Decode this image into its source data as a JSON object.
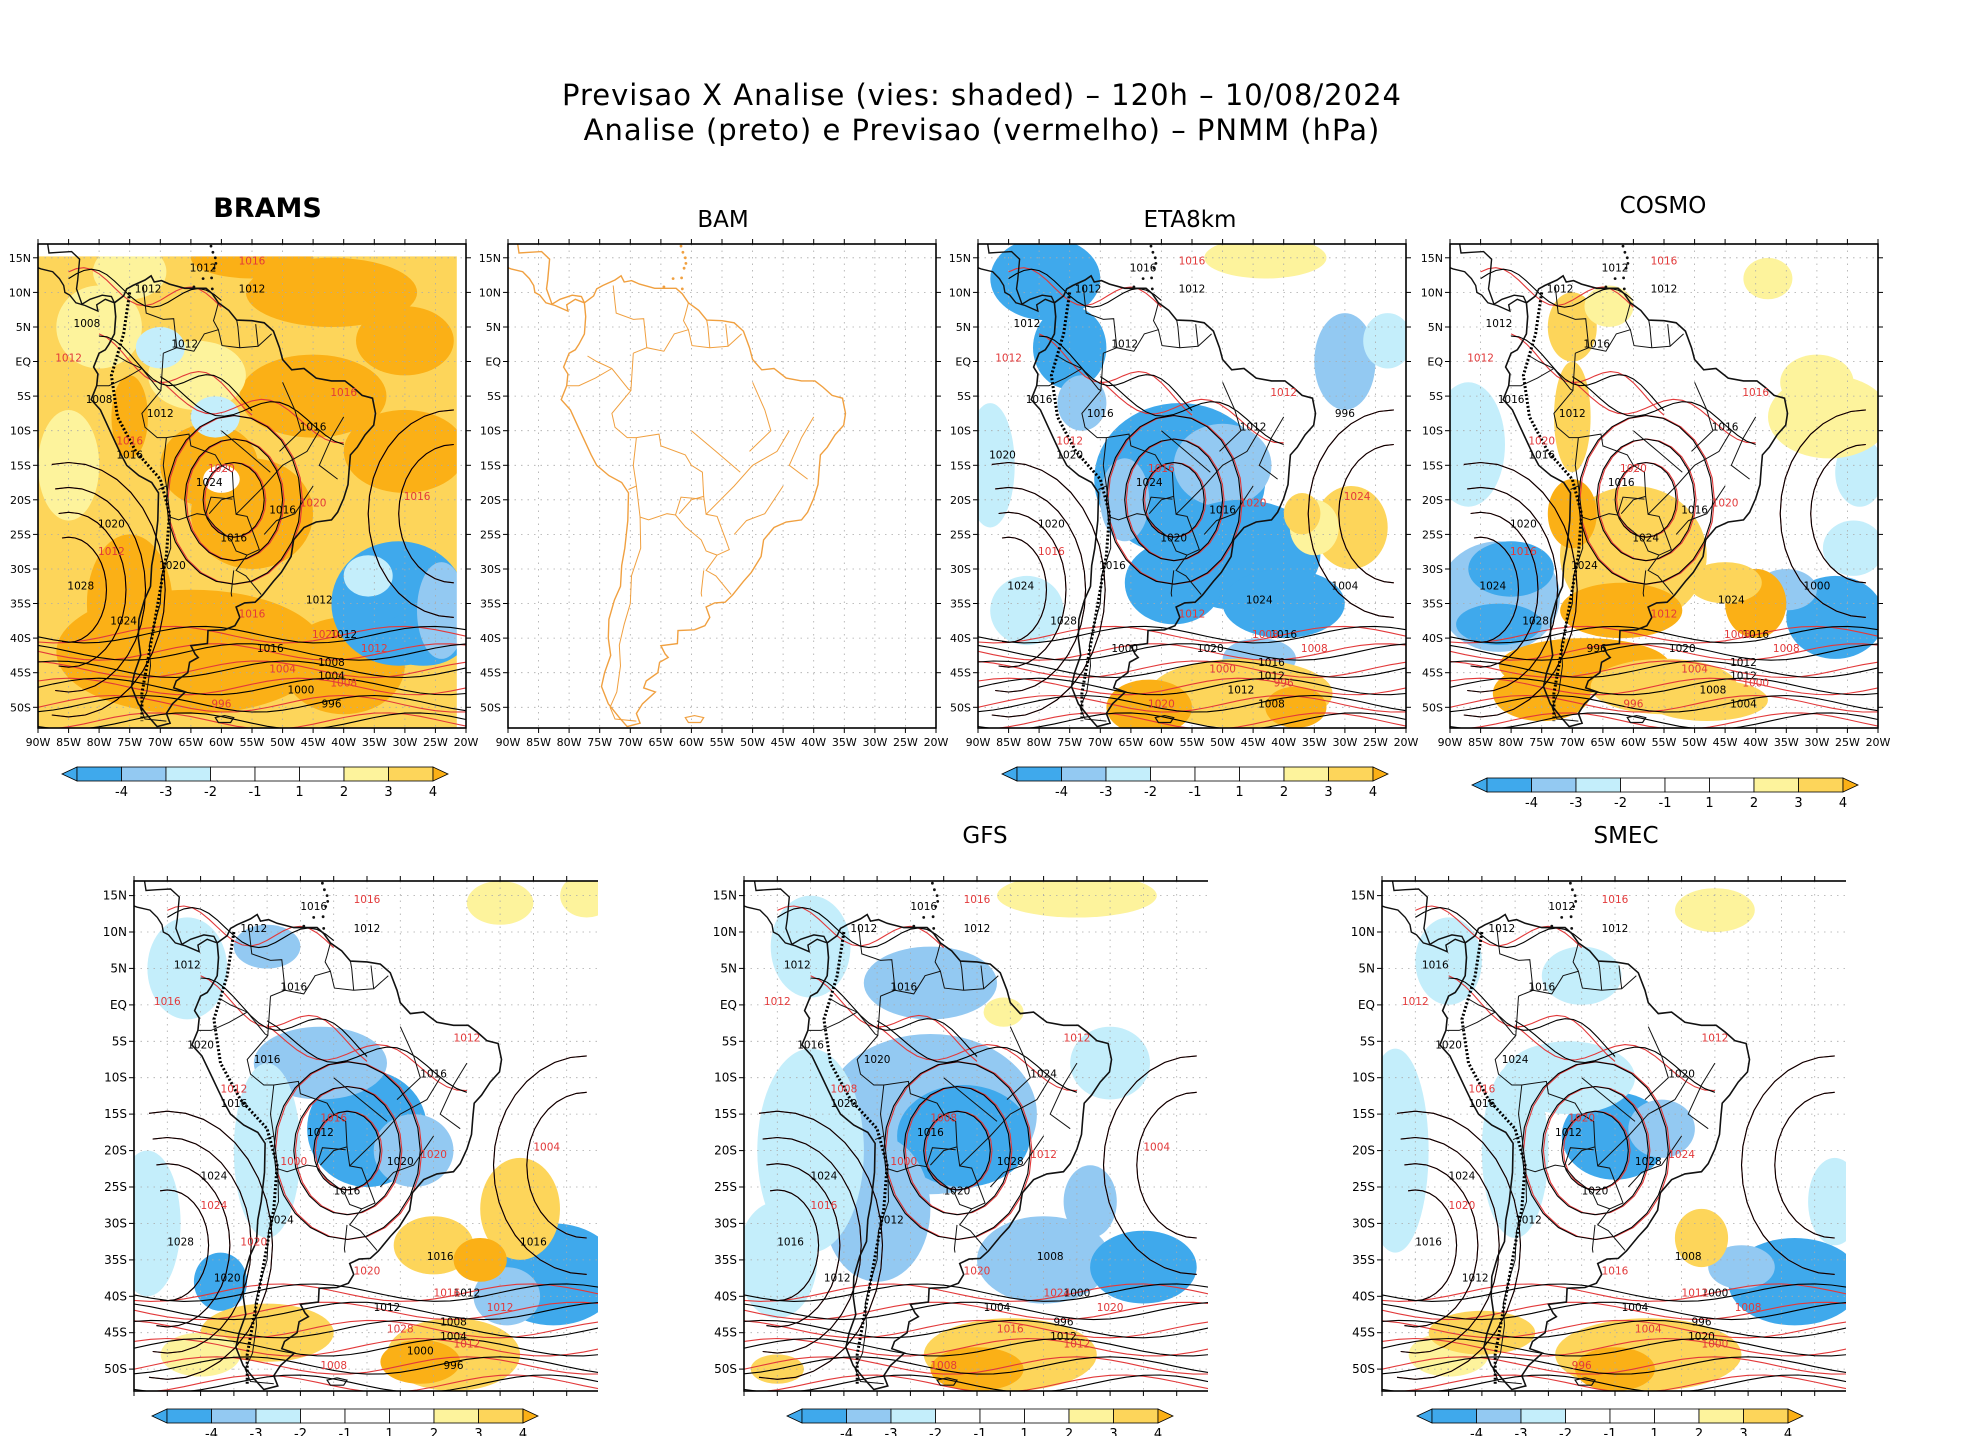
{
  "header": {
    "line1": "Previsao X Analise (vies: shaded) – 120h – 10/08/2024",
    "line2": "Analise (preto) e Previsao (vermelho) – PNMM (hPa)"
  },
  "colors": {
    "neg4": "#3fa9ec",
    "neg3": "#93c9f2",
    "neg2": "#c4eefb",
    "neg1": "#ffffff",
    "pos1": "#ffffff",
    "pos2": "#fdf39c",
    "pos3": "#fdd55a",
    "pos4": "#fbb016",
    "analysis_contour": "#000000",
    "forecast_contour": "#e2393a",
    "bam_coast": "#f0a040"
  },
  "axes": {
    "lat_labels": [
      "15N",
      "10N",
      "5N",
      "EQ",
      "5S",
      "10S",
      "15S",
      "20S",
      "25S",
      "30S",
      "35S",
      "40S",
      "45S",
      "50S"
    ],
    "lon_labels": [
      "90W",
      "85W",
      "80W",
      "75W",
      "70W",
      "65W",
      "60W",
      "55W",
      "50W",
      "45W",
      "40W",
      "35W",
      "30W",
      "25W",
      "20W"
    ]
  },
  "colorbar": {
    "labels": [
      "-4",
      "-3",
      "-2",
      "-1",
      "1",
      "2",
      "3",
      "4"
    ]
  },
  "panels": [
    {
      "id": "brams",
      "title": "BRAMS",
      "bold": true,
      "has_colorbar": true,
      "field": "brams",
      "labels_black": [
        "1012",
        "1012",
        "1012",
        "1008",
        "1012",
        "1008",
        "1012",
        "1016",
        "1016",
        "1024",
        "1016",
        "1020",
        "1016",
        "1028",
        "1020",
        "1024",
        "1012",
        "1016",
        "1012",
        "1008",
        "1004",
        "1000",
        "996"
      ],
      "labels_red": [
        "1016",
        "1012",
        "1016",
        "1016",
        "1020",
        "1020",
        "1012",
        "1016",
        "1020",
        "1012",
        "1004",
        "1008",
        "996",
        "1016"
      ]
    },
    {
      "id": "bam",
      "title": "BAM",
      "bold": false,
      "has_colorbar": false,
      "field": "none",
      "labels_black": [],
      "labels_red": []
    },
    {
      "id": "eta",
      "title": "ETA8km",
      "bold": false,
      "has_colorbar": true,
      "field": "eta",
      "labels_black": [
        "1016",
        "1012",
        "1012",
        "1012",
        "1012",
        "1016",
        "1016",
        "1012",
        "1020",
        "1024",
        "1016",
        "1020",
        "1020",
        "1024",
        "1016",
        "1028",
        "1024",
        "1020",
        "1016",
        "1016",
        "1012",
        "1012",
        "1008",
        "1004",
        "1000",
        "996",
        "1020"
      ],
      "labels_red": [
        "1016",
        "1012",
        "1012",
        "1012",
        "1016",
        "1020",
        "1016",
        "1012",
        "1008",
        "1008",
        "1000",
        "996",
        "1020",
        "1024"
      ]
    },
    {
      "id": "cosmo",
      "title": "COSMO",
      "bold": false,
      "has_colorbar": true,
      "field": "cosmo",
      "labels_black": [
        "1012",
        "1012",
        "1012",
        "1012",
        "1016",
        "1016",
        "1012",
        "1016",
        "1016",
        "1016",
        "1016",
        "1020",
        "1024",
        "1024",
        "1024",
        "1028",
        "1024",
        "1020",
        "1016",
        "1012",
        "1012",
        "1008",
        "1004",
        "1000",
        "996"
      ],
      "labels_red": [
        "1016",
        "1012",
        "1016",
        "1020",
        "1020",
        "1020",
        "1016",
        "1012",
        "1008",
        "1008",
        "1004",
        "1000",
        "996"
      ]
    },
    {
      "id": "ecmwf",
      "title": "",
      "bold": false,
      "has_colorbar": true,
      "field": "ecmwf",
      "labels_black": [
        "1016",
        "1012",
        "1012",
        "1012",
        "1016",
        "1020",
        "1016",
        "1016",
        "1016",
        "1012",
        "1020",
        "1024",
        "1016",
        "1028",
        "1024",
        "1020",
        "1016",
        "1012",
        "1012",
        "1008",
        "1004",
        "1000",
        "996",
        "1016"
      ],
      "labels_red": [
        "1016",
        "1016",
        "1012",
        "1012",
        "1016",
        "1020",
        "1024",
        "1020",
        "1016",
        "1012",
        "1028",
        "1012",
        "1008",
        "1004",
        "1000",
        "1020"
      ]
    },
    {
      "id": "gfs",
      "title": "GFS",
      "bold": false,
      "has_colorbar": true,
      "field": "gfs",
      "labels_black": [
        "1016",
        "1012",
        "1012",
        "1012",
        "1016",
        "1016",
        "1020",
        "1024",
        "1020",
        "1016",
        "1028",
        "1024",
        "1020",
        "1016",
        "1012",
        "1012",
        "1008",
        "1004",
        "1000",
        "996",
        "1012"
      ],
      "labels_red": [
        "1016",
        "1012",
        "1012",
        "1008",
        "1008",
        "1012",
        "1016",
        "1020",
        "1024",
        "1020",
        "1016",
        "1012",
        "1008",
        "1004",
        "1000"
      ]
    },
    {
      "id": "smec",
      "title": "SMEC",
      "bold": false,
      "has_colorbar": true,
      "field": "smec",
      "labels_black": [
        "1012",
        "1012",
        "1012",
        "1016",
        "1016",
        "1020",
        "1024",
        "1020",
        "1016",
        "1012",
        "1028",
        "1024",
        "1020",
        "1016",
        "1012",
        "1012",
        "1008",
        "1004",
        "1000",
        "996",
        "1020"
      ],
      "labels_red": [
        "1016",
        "1012",
        "1012",
        "1016",
        "1020",
        "1024",
        "1020",
        "1016",
        "1012",
        "1008",
        "1004",
        "1000",
        "996"
      ]
    }
  ]
}
